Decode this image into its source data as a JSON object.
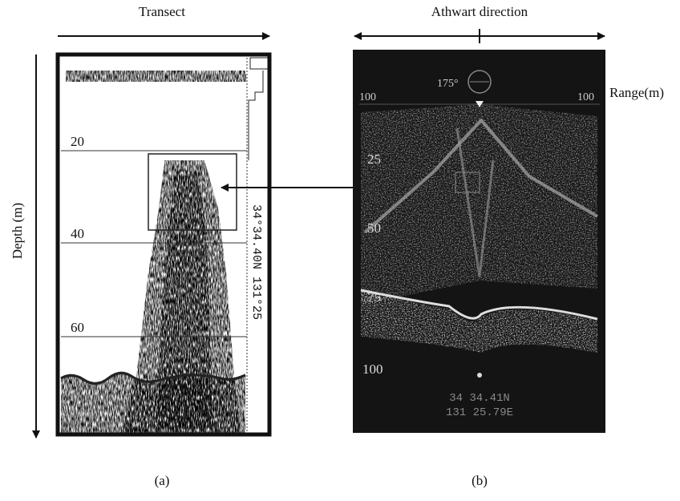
{
  "panel_a": {
    "heading": "Transect",
    "axis_label": "Depth (m)",
    "depth_labels": [
      "20",
      "40",
      "60"
    ],
    "side_text": "34°34.40N 131°25",
    "caption": "(a)"
  },
  "panel_b": {
    "heading": "Athwart direction",
    "range_label": "Range(m)",
    "range_labels": [
      "25",
      "50",
      "75",
      "100"
    ],
    "top_labels": [
      "100",
      "175°",
      "100"
    ],
    "bottom_text": [
      "34 34.41N",
      "131 25.79E"
    ],
    "caption": "(b)"
  }
}
